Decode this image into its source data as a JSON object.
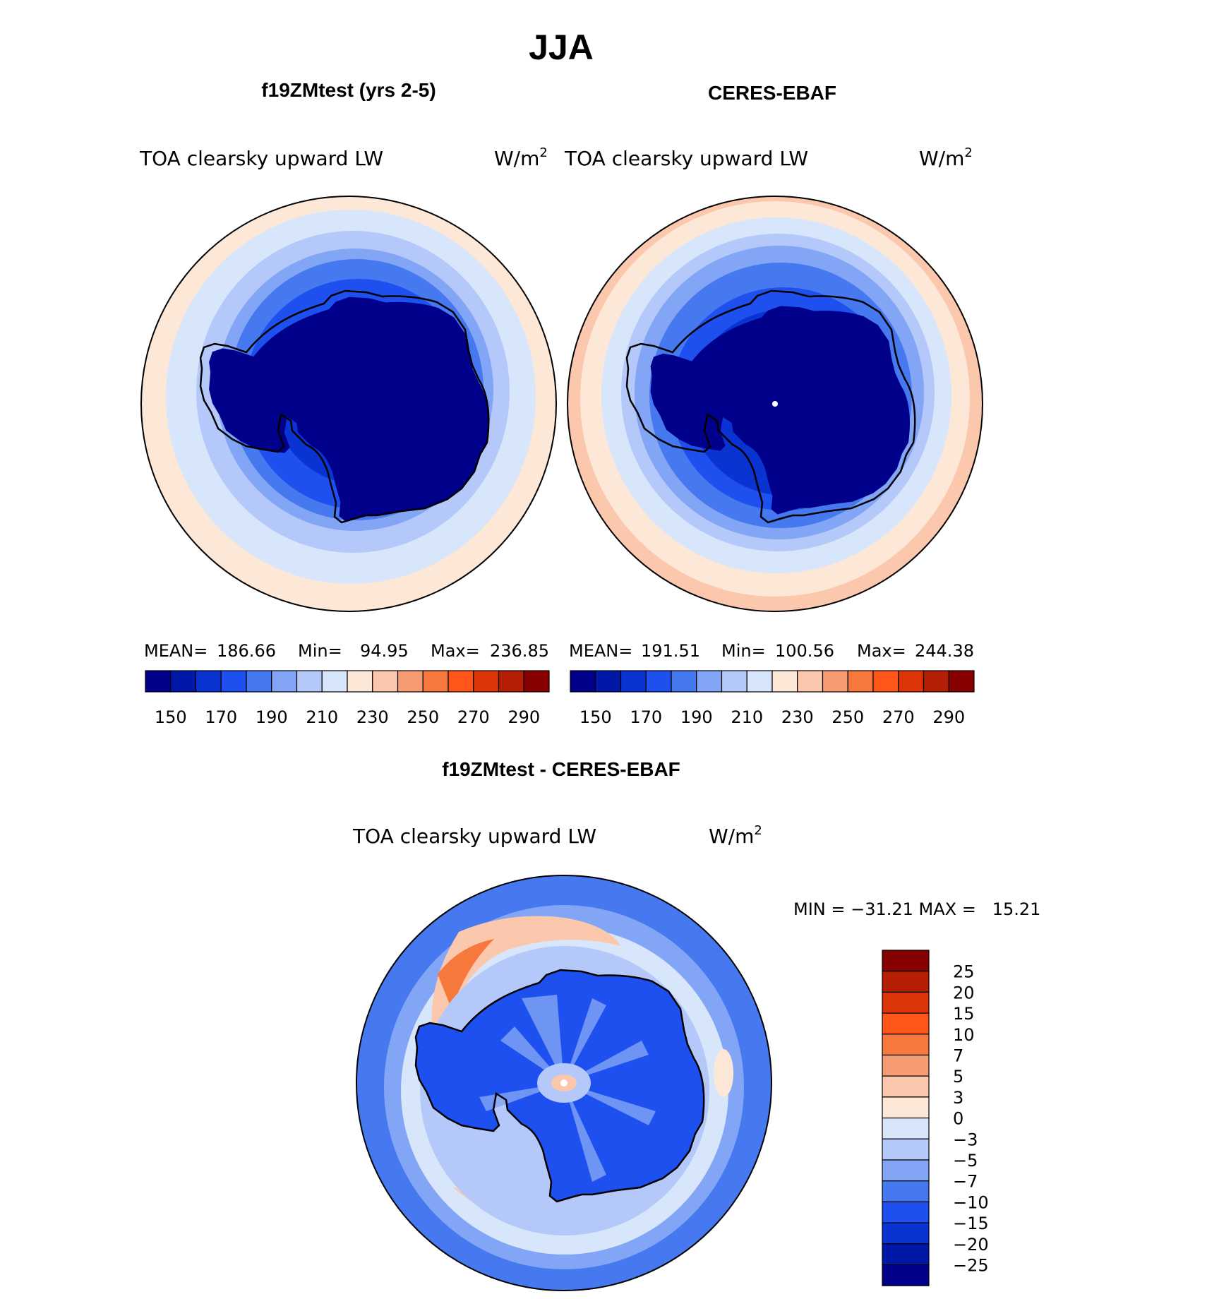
{
  "main_title": "JJA",
  "panels": [
    {
      "title": "f19ZMtest (yrs 2-5)",
      "variable": "TOA clearsky upward LW",
      "units": "W/m",
      "units_exp": "2",
      "stats": {
        "mean_label": "MEAN=",
        "mean": "186.66",
        "min_label": "Min=",
        "min": "94.95",
        "max_label": "Max=",
        "max": "236.85"
      }
    },
    {
      "title": "CERES-EBAF",
      "variable": "TOA clearsky upward LW",
      "units": "W/m",
      "units_exp": "2",
      "stats": {
        "mean_label": "MEAN=",
        "mean": "191.51",
        "min_label": "Min=",
        "min": "100.56",
        "max_label": "Max=",
        "max": "244.38"
      }
    }
  ],
  "abs_colorbar": {
    "labels": [
      "150",
      "170",
      "190",
      "210",
      "230",
      "250",
      "270",
      "290"
    ],
    "colors": [
      "#00008b",
      "#0018a8",
      "#0a34d2",
      "#1e50f0",
      "#4678f0",
      "#82a5f5",
      "#b4c8fa",
      "#d7e6fa",
      "#fde7d7",
      "#fbc8ae",
      "#f79b73",
      "#f7783c",
      "#ff5519",
      "#dc3508",
      "#b41e05",
      "#870000"
    ]
  },
  "diff_panel": {
    "title": "f19ZMtest - CERES-EBAF",
    "variable": "TOA clearsky upward LW",
    "units": "W/m",
    "units_exp": "2",
    "range_text": "MIN = −31.21 MAX =   15.21"
  },
  "diff_colorbar": {
    "labels": [
      "25",
      "20",
      "15",
      "10",
      "7",
      "5",
      "3",
      "0",
      "−3",
      "−5",
      "−7",
      "−10",
      "−15",
      "−20",
      "−25"
    ],
    "colors": [
      "#870000",
      "#b41e05",
      "#dc3508",
      "#ff5519",
      "#f7783c",
      "#f79b73",
      "#fbc8ae",
      "#fde7d7",
      "#d7e6fa",
      "#b4c8fa",
      "#82a5f5",
      "#4678f0",
      "#1e50f0",
      "#0a34d2",
      "#0018a8",
      "#00008b"
    ]
  }
}
